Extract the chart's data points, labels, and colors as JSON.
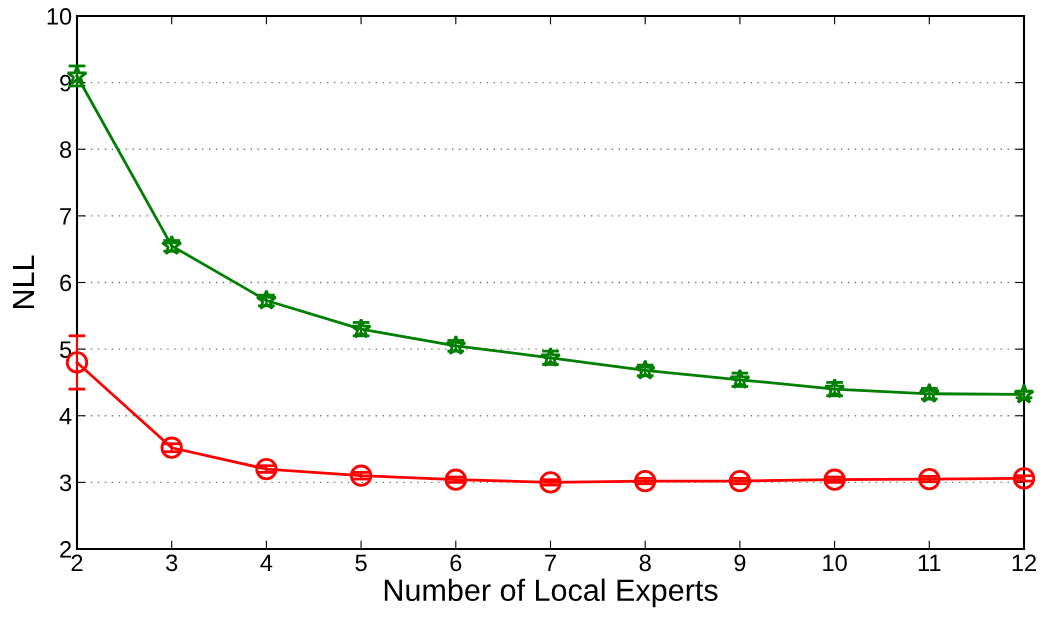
{
  "chart_data": {
    "type": "line",
    "xlabel": "Number of Local Experts",
    "ylabel": "NLL",
    "x": [
      2,
      3,
      4,
      5,
      6,
      7,
      8,
      9,
      10,
      11,
      12
    ],
    "series": [
      {
        "color": "#007f00",
        "marker": "star",
        "values": [
          9.1,
          6.55,
          5.73,
          5.3,
          5.05,
          4.87,
          4.68,
          4.54,
          4.4,
          4.33,
          4.32
        ],
        "errors": [
          0.15,
          0.08,
          0.08,
          0.1,
          0.08,
          0.1,
          0.08,
          0.1,
          0.1,
          0.08,
          0.05
        ]
      },
      {
        "color": "#ff0000",
        "marker": "circle",
        "values": [
          4.8,
          3.52,
          3.2,
          3.1,
          3.04,
          3.0,
          3.02,
          3.02,
          3.04,
          3.05,
          3.06
        ],
        "errors": [
          0.4,
          0.06,
          0.05,
          0.05,
          0.04,
          0.04,
          0.04,
          0.04,
          0.04,
          0.04,
          0.04
        ]
      }
    ],
    "xlim": [
      2,
      12
    ],
    "xticks": [
      2,
      3,
      4,
      5,
      6,
      7,
      8,
      9,
      10,
      11,
      12
    ],
    "ylim": [
      2,
      10
    ],
    "yticks": [
      2,
      3,
      4,
      5,
      6,
      7,
      8,
      9,
      10
    ],
    "grid": "y",
    "line_style": "solid"
  }
}
